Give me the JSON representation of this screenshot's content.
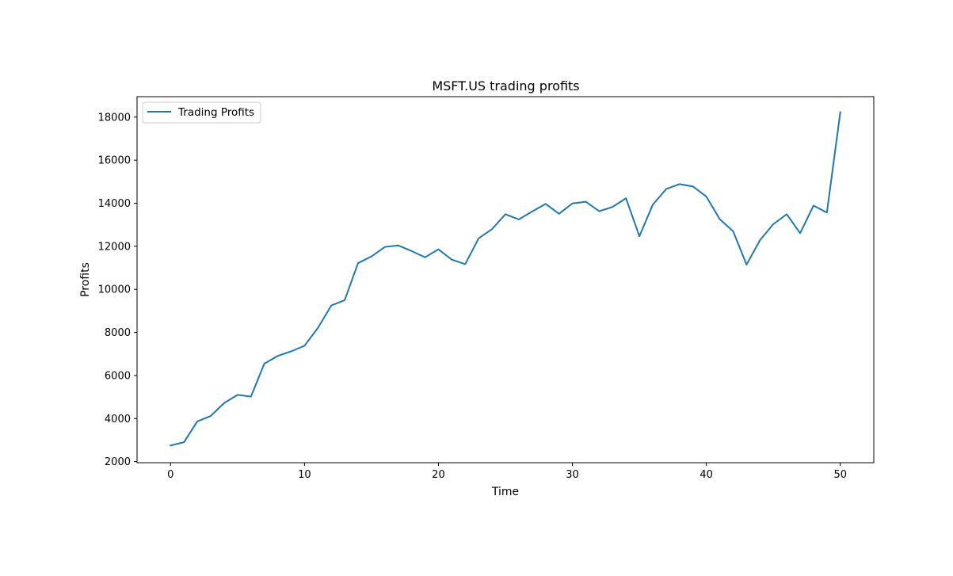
{
  "chart_data": {
    "type": "line",
    "title": "MSFT.US trading profits",
    "xlabel": "Time",
    "ylabel": "Profits",
    "xlim": [
      -2.5,
      52.5
    ],
    "ylim": [
      1950,
      18950
    ],
    "xticks": [
      0,
      10,
      20,
      30,
      40,
      50
    ],
    "yticks": [
      2000,
      4000,
      6000,
      8000,
      10000,
      12000,
      14000,
      16000,
      18000
    ],
    "grid": false,
    "legend_position": "upper-left",
    "series": [
      {
        "name": "Trading Profits",
        "color": "#1f77b4",
        "x": [
          0,
          1,
          2,
          3,
          4,
          5,
          6,
          7,
          8,
          9,
          10,
          11,
          12,
          13,
          14,
          15,
          16,
          17,
          18,
          19,
          20,
          21,
          22,
          23,
          24,
          25,
          26,
          27,
          28,
          29,
          30,
          31,
          32,
          33,
          34,
          35,
          36,
          37,
          38,
          39,
          40,
          41,
          42,
          43,
          44,
          45,
          46,
          47,
          48,
          49,
          50
        ],
        "values": [
          2750,
          2900,
          3870,
          4120,
          4720,
          5100,
          5020,
          6550,
          6910,
          7120,
          7380,
          8210,
          9250,
          9500,
          11220,
          11530,
          11970,
          12040,
          11780,
          11490,
          11860,
          11380,
          11170,
          12370,
          12800,
          13490,
          13250,
          13620,
          13970,
          13510,
          13990,
          14070,
          13630,
          13830,
          14230,
          12470,
          13930,
          14660,
          14890,
          14780,
          14310,
          13260,
          12700,
          11150,
          12280,
          13030,
          13490,
          12610,
          13890,
          13570,
          18230
        ]
      }
    ]
  }
}
